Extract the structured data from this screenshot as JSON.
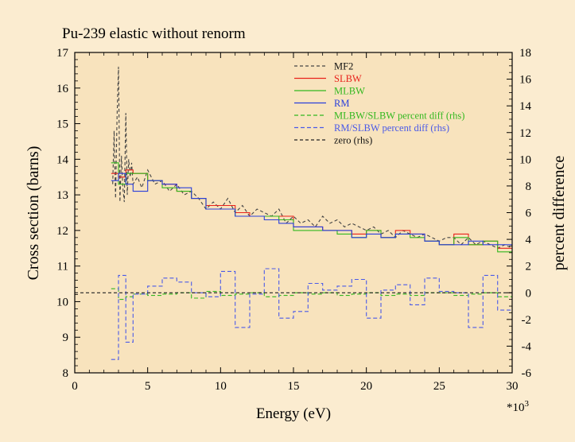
{
  "colors": {
    "page_bg": "#fbecd0",
    "plot_bg": "#f8e3bd",
    "mf2": "#444444",
    "slbw": "#e8231c",
    "mlbw": "#33b81f",
    "rm": "#2a3fdb",
    "mlbw_diff": "#33b81f",
    "rm_diff": "#4a5ae8",
    "zero": "#222222"
  },
  "chart_data": {
    "type": "line",
    "title": "Pu-239 elastic without renorm",
    "xlabel": "Energy (eV)",
    "xscale_note": "*10",
    "xscale_exp": "3",
    "ylabel": "Cross section (barns)",
    "y2label": "percent difference",
    "xlim": [
      0,
      30
    ],
    "ylim": [
      8,
      17
    ],
    "y2lim": [
      -6,
      18
    ],
    "xticks": [
      "0",
      "5",
      "10",
      "15",
      "20",
      "25",
      "30"
    ],
    "yticks": [
      "8",
      "9",
      "10",
      "11",
      "12",
      "13",
      "14",
      "15",
      "16",
      "17"
    ],
    "y2ticks": [
      "-6",
      "-4",
      "-2",
      "0",
      "2",
      "4",
      "6",
      "8",
      "10",
      "12",
      "14",
      "16",
      "18"
    ],
    "legend_position": "top-right",
    "series": [
      {
        "name": "MF2",
        "key": "mf2",
        "axis": "left",
        "dash": "4,3",
        "step": false,
        "x": [
          2.6,
          2.7,
          2.8,
          2.9,
          3.0,
          3.1,
          3.2,
          3.3,
          3.4,
          3.5,
          3.6,
          3.7,
          3.8,
          3.9,
          4.0,
          4.3,
          4.6,
          5.0,
          5.5,
          6.0,
          6.5,
          7.0,
          7.5,
          8.0,
          8.5,
          9.0,
          9.5,
          10.0,
          10.5,
          11.0,
          11.5,
          12.0,
          12.5,
          13.0,
          13.5,
          14.0,
          14.5,
          15.0,
          15.5,
          16.0,
          16.5,
          17.0,
          17.5,
          18.0,
          18.5,
          19.0,
          19.5,
          20.0,
          20.5,
          21.0,
          21.5,
          22.0,
          22.5,
          23.0,
          23.5,
          24.0,
          24.5,
          25.0,
          25.5,
          26.0,
          26.5,
          27.0,
          27.5,
          28.0,
          28.5,
          29.0,
          29.5,
          30.0
        ],
        "y": [
          13.3,
          14.8,
          12.9,
          15.2,
          16.6,
          12.8,
          14.1,
          13.2,
          12.8,
          15.3,
          13.0,
          14.0,
          13.5,
          13.9,
          13.3,
          13.5,
          13.2,
          13.7,
          13.3,
          13.4,
          13.1,
          13.3,
          13.0,
          13.1,
          12.9,
          12.6,
          12.8,
          12.6,
          12.9,
          12.5,
          12.7,
          12.4,
          12.6,
          12.5,
          12.4,
          12.6,
          12.2,
          12.4,
          12.2,
          12.3,
          12.1,
          12.4,
          12.2,
          12.3,
          12.1,
          12.2,
          12.1,
          12.0,
          12.1,
          11.9,
          12.0,
          11.8,
          12.0,
          11.9,
          11.8,
          11.9,
          11.8,
          11.7,
          11.8,
          11.8,
          11.6,
          11.8,
          11.6,
          11.7,
          11.6,
          11.5,
          11.6,
          11.5
        ]
      },
      {
        "name": "SLBW",
        "key": "slbw",
        "axis": "left",
        "dash": "",
        "step": true,
        "x": [
          2.5,
          3.0,
          3.5,
          4.0,
          5.0,
          6.0,
          7.0,
          8.0,
          9.0,
          10.0,
          11.0,
          12.0,
          13.0,
          14.0,
          15.0,
          16.0,
          17.0,
          18.0,
          19.0,
          20.0,
          21.0,
          22.0,
          23.0,
          24.0,
          25.0,
          26.0,
          27.0,
          28.0,
          29.0,
          30.0
        ],
        "y": [
          13.6,
          13.5,
          13.7,
          13.6,
          13.4,
          13.3,
          13.1,
          12.9,
          12.7,
          12.7,
          12.5,
          12.4,
          12.4,
          12.4,
          12.1,
          12.1,
          12.0,
          12.0,
          11.9,
          12.0,
          11.8,
          12.0,
          11.9,
          11.7,
          11.6,
          11.9,
          11.6,
          11.7,
          11.5,
          11.5
        ]
      },
      {
        "name": "MLBW",
        "key": "mlbw",
        "axis": "left",
        "dash": "",
        "step": true,
        "x": [
          2.5,
          3.0,
          3.5,
          4.0,
          5.0,
          6.0,
          7.0,
          8.0,
          9.0,
          10.0,
          11.0,
          12.0,
          13.0,
          14.0,
          15.0,
          16.0,
          17.0,
          18.0,
          19.0,
          20.0,
          21.0,
          22.0,
          23.0,
          24.0,
          25.0,
          26.0,
          27.0,
          28.0,
          29.0,
          30.0
        ],
        "y": [
          13.9,
          13.3,
          13.6,
          13.6,
          13.4,
          13.2,
          13.1,
          12.9,
          12.6,
          12.6,
          12.4,
          12.4,
          12.4,
          12.3,
          12.0,
          12.0,
          12.0,
          11.9,
          11.8,
          12.0,
          11.8,
          11.9,
          11.8,
          11.7,
          11.6,
          11.8,
          11.6,
          11.7,
          11.4,
          11.4
        ]
      },
      {
        "name": "RM",
        "key": "rm",
        "axis": "left",
        "dash": "",
        "step": true,
        "x": [
          2.5,
          3.0,
          3.5,
          4.0,
          5.0,
          6.0,
          7.0,
          8.0,
          9.0,
          10.0,
          11.0,
          12.0,
          13.0,
          14.0,
          15.0,
          16.0,
          17.0,
          18.0,
          19.0,
          20.0,
          21.0,
          22.0,
          23.0,
          24.0,
          25.0,
          26.0,
          27.0,
          28.0,
          29.0,
          30.0
        ],
        "y": [
          13.4,
          13.6,
          13.3,
          13.1,
          13.4,
          13.3,
          13.2,
          12.9,
          12.6,
          12.6,
          12.4,
          12.4,
          12.3,
          12.2,
          12.1,
          12.1,
          12.0,
          12.0,
          11.8,
          11.9,
          11.8,
          11.9,
          11.9,
          11.7,
          11.6,
          11.6,
          11.7,
          11.6,
          11.6,
          11.6
        ]
      },
      {
        "name": "MLBW/SLBW percent diff (rhs)",
        "key": "mlbw_diff",
        "axis": "right",
        "dash": "5,3",
        "step": true,
        "x": [
          2.5,
          3.0,
          3.5,
          4.0,
          5.0,
          6.0,
          7.0,
          8.0,
          9.0,
          10.0,
          11.0,
          12.0,
          13.0,
          14.0,
          15.0,
          16.0,
          17.0,
          18.0,
          19.0,
          20.0,
          21.0,
          22.0,
          23.0,
          24.0,
          25.0,
          26.0,
          27.0,
          28.0,
          29.0,
          30.0
        ],
        "y": [
          0.3,
          -0.5,
          -0.3,
          -0.1,
          -0.2,
          -0.1,
          0.0,
          -0.4,
          0.1,
          -0.2,
          -0.1,
          0.0,
          -0.3,
          -0.2,
          0.0,
          -0.1,
          0.0,
          -0.2,
          -0.1,
          0.0,
          -0.2,
          -0.1,
          -0.2,
          0.0,
          0.0,
          -0.2,
          -0.1,
          0.0,
          -0.3,
          -0.3
        ]
      },
      {
        "name": "RM/SLBW percent diff (rhs)",
        "key": "rm_diff",
        "axis": "right",
        "dash": "5,3",
        "step": true,
        "x": [
          2.5,
          3.0,
          3.5,
          4.0,
          5.0,
          6.0,
          7.0,
          8.0,
          9.0,
          10.0,
          11.0,
          12.0,
          13.0,
          14.0,
          15.0,
          16.0,
          17.0,
          18.0,
          19.0,
          20.0,
          21.0,
          22.0,
          23.0,
          24.0,
          25.0,
          26.0,
          27.0,
          28.0,
          29.0,
          30.0
        ],
        "y": [
          -5.0,
          1.3,
          -3.7,
          -0.1,
          0.5,
          1.1,
          0.8,
          0.0,
          -0.3,
          1.6,
          -2.6,
          -0.1,
          1.8,
          -1.9,
          -1.4,
          0.7,
          0.2,
          0.5,
          1.0,
          -1.9,
          0.2,
          0.6,
          -0.9,
          1.1,
          0.1,
          0.0,
          -2.6,
          1.3,
          -1.3,
          1.6
        ]
      },
      {
        "name": "zero (rhs)",
        "key": "zero",
        "axis": "right",
        "dash": "4,3",
        "step": false,
        "x": [
          0,
          30
        ],
        "y": [
          0,
          0
        ]
      }
    ]
  }
}
